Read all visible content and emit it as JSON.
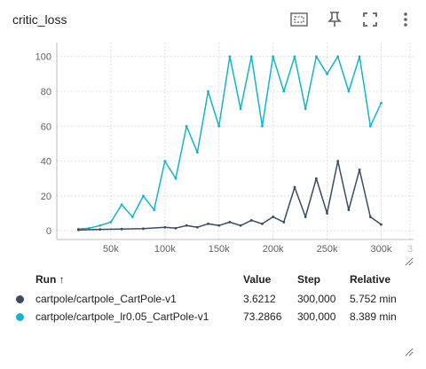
{
  "header": {
    "title": "critic_loss",
    "tools": [
      {
        "icon": "data-selection-icon"
      },
      {
        "icon": "pin-icon"
      },
      {
        "icon": "fullscreen-icon"
      },
      {
        "icon": "more-vert-icon"
      }
    ]
  },
  "colors": {
    "series0": "#3d4a63",
    "series1": "#12b5cb",
    "grid": "#e0e0e0",
    "axis": "#bdbdbd"
  },
  "chart_data": {
    "type": "line",
    "xlim": [
      0,
      300000
    ],
    "ylim": [
      -5,
      108
    ],
    "x_ticks": [
      "50k",
      "100k",
      "150k",
      "200k",
      "250k",
      "300k",
      "3"
    ],
    "y_ticks": [
      "0",
      "20",
      "40",
      "60",
      "80",
      "100"
    ],
    "grid": true,
    "series": [
      {
        "name": "cartpole/cartpole_CartPole-v1",
        "x": [
          20000,
          40000,
          60000,
          80000,
          100000,
          110000,
          120000,
          130000,
          140000,
          150000,
          160000,
          170000,
          180000,
          190000,
          200000,
          210000,
          220000,
          230000,
          240000,
          250000,
          260000,
          270000,
          280000,
          290000,
          300000
        ],
        "values": [
          0.5,
          0.8,
          1,
          1.2,
          2,
          1.5,
          3,
          2,
          4,
          3,
          5,
          3,
          6,
          4,
          8,
          5,
          25,
          8,
          30,
          10,
          40,
          12,
          35,
          8,
          3.6
        ]
      },
      {
        "name": "cartpole/cartpole_lr0.05_CartPole-v1",
        "x": [
          20000,
          30000,
          40000,
          50000,
          60000,
          70000,
          80000,
          90000,
          100000,
          110000,
          120000,
          130000,
          140000,
          150000,
          160000,
          170000,
          180000,
          190000,
          200000,
          210000,
          220000,
          230000,
          240000,
          250000,
          260000,
          270000,
          280000,
          290000,
          300000
        ],
        "values": [
          1,
          1.5,
          3,
          5,
          15,
          8,
          20,
          12,
          40,
          30,
          60,
          45,
          80,
          60,
          100,
          70,
          100,
          60,
          100,
          80,
          100,
          70,
          100,
          90,
          100,
          80,
          100,
          60,
          73.3
        ]
      }
    ]
  },
  "table": {
    "headers": {
      "run": "Run ↑",
      "value": "Value",
      "step": "Step",
      "relative": "Relative"
    },
    "rows": [
      {
        "run": "cartpole/cartpole_CartPole-v1",
        "value": "3.6212",
        "step": "300,000",
        "relative": "5.752 min",
        "color": "#3d4a63"
      },
      {
        "run": "cartpole/cartpole_lr0.05_CartPole-v1",
        "value": "73.2866",
        "step": "300,000",
        "relative": "8.389 min",
        "color": "#12b5cb"
      }
    ]
  }
}
